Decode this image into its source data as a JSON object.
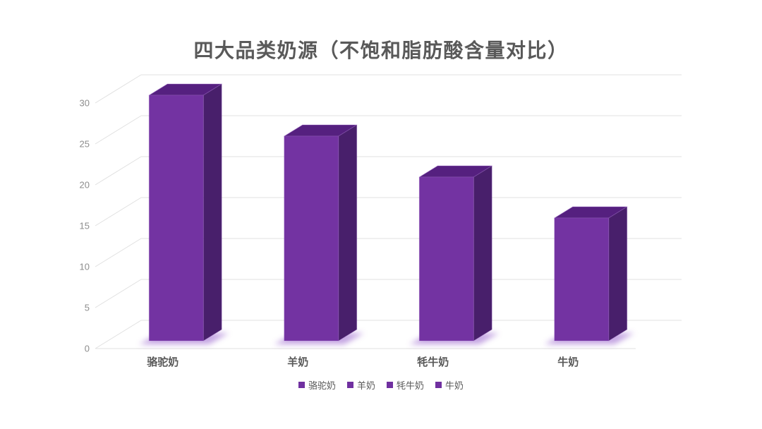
{
  "title": "四大品类奶源（不饱和脂肪酸含量对比）",
  "chart_data": {
    "type": "bar",
    "projection": "3d-oblique",
    "title": "四大品类奶源（不饱和脂肪酸含量对比）",
    "categories": [
      "骆驼奶",
      "羊奶",
      "牦牛奶",
      "牛奶"
    ],
    "category_ids": [
      "camel-milk",
      "goat-milk",
      "yak-milk",
      "cow-milk"
    ],
    "values": [
      30,
      25,
      20,
      15
    ],
    "xlabel": "",
    "ylabel": "",
    "ylim": [
      0,
      30
    ],
    "yticks": [
      0,
      5,
      10,
      15,
      20,
      25,
      30
    ],
    "grid": true,
    "legend": [
      "骆驼奶",
      "羊奶",
      "牦牛奶",
      "牛奶"
    ],
    "legend_position": "bottom"
  },
  "colors": {
    "bar_front": "#7333A2",
    "bar_top": "#55207F",
    "bar_side": "#481F6B",
    "bar_edge": "#A571CC",
    "bar_glow": "#8B4EC6",
    "legend_marker": "#7030A0",
    "title_text": "#595959",
    "category_text": "#595959",
    "tick_text": "#8C8C8C",
    "legend_text": "#595959",
    "gridline": "#E0E0E0",
    "background": "#FFFFFF"
  }
}
